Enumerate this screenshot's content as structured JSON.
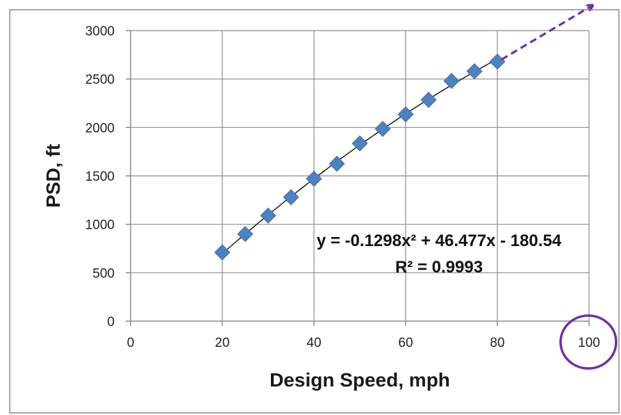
{
  "chart_data": {
    "type": "scatter",
    "title": "",
    "xlabel": "Design Speed, mph",
    "ylabel": "PSD, ft",
    "xlim": [
      0,
      100
    ],
    "ylim": [
      0,
      3000
    ],
    "x_ticks": [
      0,
      20,
      40,
      60,
      80,
      100
    ],
    "y_ticks": [
      0,
      500,
      1000,
      1500,
      2000,
      2500,
      3000
    ],
    "grid": true,
    "series": [
      {
        "x": [
          20,
          25,
          30,
          35,
          40,
          45,
          50,
          55,
          60,
          65,
          70,
          75,
          80
        ],
        "y": [
          710,
          900,
          1090,
          1280,
          1470,
          1625,
          1835,
          1985,
          2135,
          2285,
          2480,
          2580,
          2680
        ],
        "marker": "diamond",
        "color": "#4f81bd"
      }
    ],
    "trendline": {
      "type": "polynomial",
      "coefficients": {
        "a": -0.1298,
        "b": 46.477,
        "c": -180.54
      },
      "x_range": [
        20,
        80
      ],
      "color": "#000000"
    },
    "equation_line1": "y = -0.1298x² + 46.477x - 180.54",
    "equation_line2": "R² = 0.9993",
    "annotations": {
      "extrapolation_arrow_color": "#7030a0",
      "highlight_circle_color": "#7030a0",
      "highlighted_tick": 100
    }
  }
}
